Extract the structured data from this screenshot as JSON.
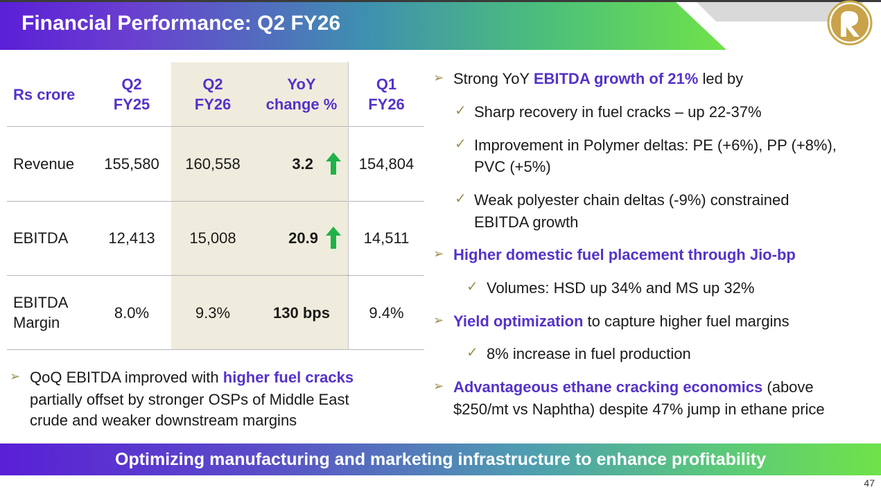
{
  "header": {
    "title": "Financial Performance: Q2 FY26"
  },
  "table": {
    "columns": [
      {
        "line1": "Rs crore",
        "line2": ""
      },
      {
        "line1": "Q2",
        "line2": "FY25"
      },
      {
        "line1": "Q2",
        "line2": "FY26"
      },
      {
        "line1": "YoY",
        "line2": "change %"
      },
      {
        "line1": "Q1",
        "line2": "FY26"
      }
    ],
    "rows": [
      {
        "label1": "Revenue",
        "label2": "",
        "q2fy25": "155,580",
        "q2fy26": "160,558",
        "yoy": "3.2",
        "q1fy26": "154,804",
        "trend": "up"
      },
      {
        "label1": "EBITDA",
        "label2": "",
        "q2fy25": "12,413",
        "q2fy26": "15,008",
        "yoy": "20.9",
        "q1fy26": "14,511",
        "trend": "up"
      },
      {
        "label1": "EBITDA",
        "label2": "Margin",
        "q2fy25": "8.0%",
        "q2fy26": "9.3%",
        "yoy": "130 bps",
        "q1fy26": "9.4%",
        "trend": ""
      }
    ]
  },
  "left_note": {
    "pre": "QoQ EBITDA improved with ",
    "highlight": "higher fuel cracks",
    "line2": "partially offset by stronger OSPs of Middle East",
    "line3": "crude and weaker downstream margins"
  },
  "right_points": {
    "p1": {
      "pre": "Strong YoY ",
      "highlight": "EBITDA growth of 21%",
      "post": " led by"
    },
    "p1_sub1": "Sharp recovery in fuel cracks – up 22-37%",
    "p1_sub2_l1": "Improvement in Polymer deltas: PE (+6%), PP (+8%),",
    "p1_sub2_l2": "PVC (+5%)",
    "p1_sub3_l1": "Weak polyester chain deltas (-9%) constrained",
    "p1_sub3_l2": "EBITDA growth",
    "p2": {
      "highlight": "Higher domestic fuel placement through Jio-bp"
    },
    "p2_sub1": "Volumes: HSD up 34% and MS up 32%",
    "p3": {
      "highlight": "Yield optimization",
      "post": " to capture higher fuel margins"
    },
    "p3_sub1": "8% increase in fuel production",
    "p4": {
      "highlight": "Advantageous ethane cracking economics",
      "post": " (above"
    },
    "p4_l2": "$250/mt vs Naphtha) despite 47% jump in ethane price"
  },
  "footer": {
    "text": "Optimizing manufacturing and marketing infrastructure to enhance profitability"
  },
  "page_number": "47",
  "colors": {
    "accent_purple": "#5433c9",
    "up_arrow_green": "#1fb24a",
    "table_shade": "#efecdd"
  }
}
